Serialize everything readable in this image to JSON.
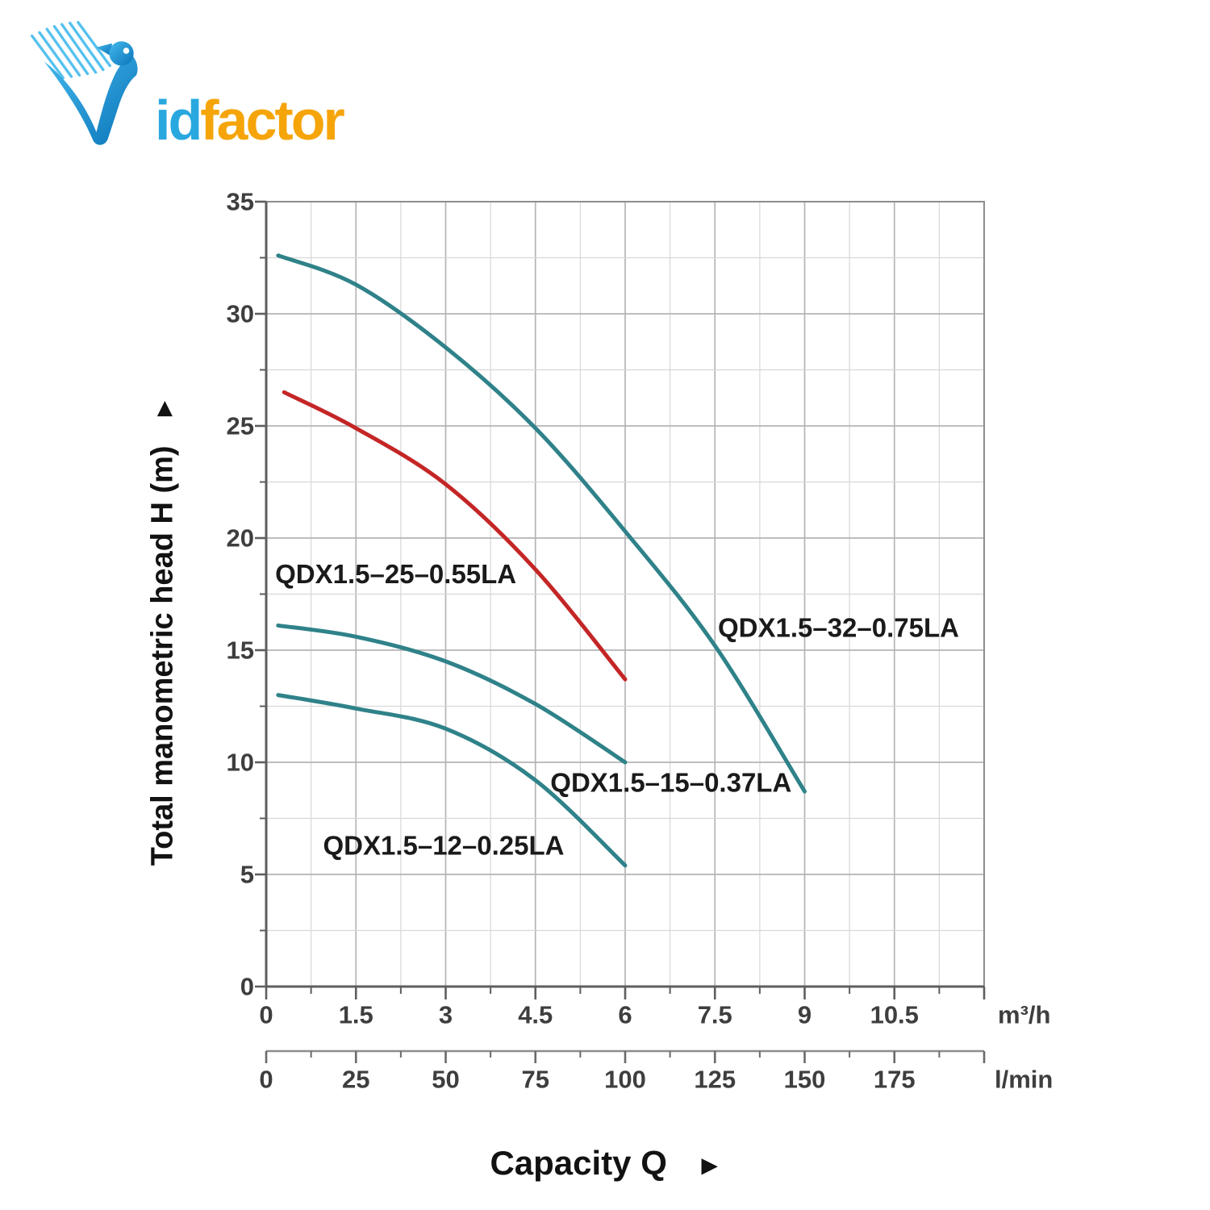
{
  "logo": {
    "id": "id",
    "factor": "factor",
    "bird_blue": "#1e9ad6",
    "text_blue": "#29a8e0",
    "text_orange": "#f5a50a"
  },
  "chart_data": {
    "type": "line",
    "title": "",
    "xlabel": "Capacity Q",
    "ylabel": "Total manometric head H (m)",
    "x_axis_arrow": "►",
    "y_axis_arrow": "►",
    "grid": true,
    "legend": "inline-labels",
    "x_axis": {
      "min": 0,
      "max": 12,
      "major_step": 1.5,
      "minor_step": 0.75,
      "unit": "m³/h",
      "tick_values": [
        0,
        1.5,
        3,
        4.5,
        6,
        7.5,
        9,
        10.5
      ],
      "tick_labels": [
        "0",
        "1.5",
        "3",
        "4.5",
        "6",
        "7.5",
        "9",
        "10.5"
      ]
    },
    "y_axis": {
      "min": 0,
      "max": 35,
      "major_step": 5,
      "minor_step": 2.5,
      "unit": "",
      "tick_values": [
        0,
        5,
        10,
        15,
        20,
        25,
        30,
        35
      ],
      "tick_labels": [
        "0",
        "5",
        "10",
        "15",
        "20",
        "25",
        "30",
        "35"
      ]
    },
    "secondary_x_axis": {
      "min": 0,
      "max": 200,
      "major_step": 25,
      "minor_step": 12.5,
      "unit": "l/min",
      "tick_values": [
        0,
        25,
        50,
        75,
        100,
        125,
        150,
        175
      ],
      "tick_labels": [
        "0",
        "25",
        "50",
        "75",
        "100",
        "125",
        "150",
        "175"
      ]
    },
    "series": [
      {
        "name": "QDX1.5–32–0.75LA",
        "color": "#2f8289",
        "points": [
          [
            0.2,
            32.6
          ],
          [
            1.5,
            31.3
          ],
          [
            3,
            28.5
          ],
          [
            4.5,
            24.9
          ],
          [
            6,
            20.3
          ],
          [
            7.5,
            15.2
          ],
          [
            9,
            8.7
          ]
        ],
        "label_pos": [
          7.55,
          16.0
        ]
      },
      {
        "name": "QDX1.5–25–0.55LA",
        "color": "#c42626",
        "points": [
          [
            0.3,
            26.5
          ],
          [
            1.5,
            24.9
          ],
          [
            3,
            22.4
          ],
          [
            4.5,
            18.6
          ],
          [
            6,
            13.7
          ]
        ],
        "label_pos": [
          0.15,
          18.4
        ]
      },
      {
        "name": "QDX1.5–15–0.37LA",
        "color": "#2f8289",
        "points": [
          [
            0.2,
            16.1
          ],
          [
            1.5,
            15.6
          ],
          [
            3,
            14.5
          ],
          [
            4.5,
            12.6
          ],
          [
            6,
            10.0
          ]
        ],
        "label_pos": [
          4.75,
          9.1
        ]
      },
      {
        "name": "QDX1.5–12–0.25LA",
        "color": "#2f8289",
        "points": [
          [
            0.2,
            13.0
          ],
          [
            1.5,
            12.4
          ],
          [
            3,
            11.5
          ],
          [
            4.5,
            9.2
          ],
          [
            6,
            5.4
          ]
        ],
        "label_pos": [
          0.95,
          6.3
        ]
      }
    ]
  }
}
